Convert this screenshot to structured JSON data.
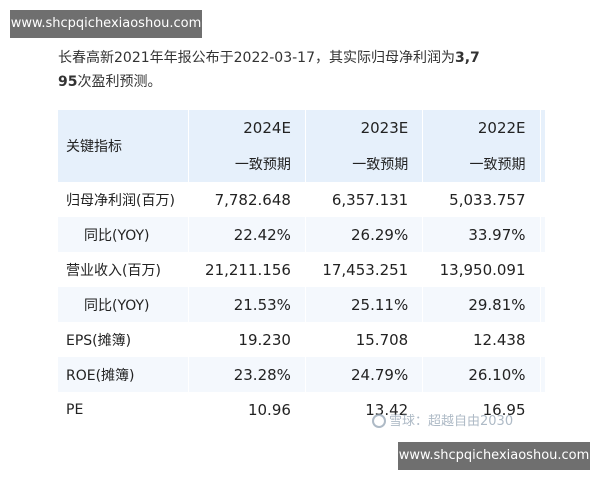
{
  "watermark_top": "www.shcpqichexiaoshou.com",
  "watermark_bottom": "www.shcpqichexiaoshou.com",
  "intro": {
    "line1_text": "长春高新2021年年报公布于2022-03-17，其实际归母净利润为",
    "line1_num": "3,7",
    "line2_num": "95",
    "line2_text": "次盈利预测。"
  },
  "table": {
    "header_label": "关键指标",
    "years": [
      "2024E",
      "2023E",
      "2022E"
    ],
    "subheader": [
      "一致预期",
      "一致预期",
      "一致预期"
    ],
    "rows": [
      {
        "label": "归母净利润(百万)",
        "indent": false,
        "values": [
          "7,782.648",
          "6,357.131",
          "5,033.757"
        ]
      },
      {
        "label": "同比(YOY)",
        "indent": true,
        "values": [
          "22.42%",
          "26.29%",
          "33.97%"
        ]
      },
      {
        "label": "营业收入(百万)",
        "indent": false,
        "values": [
          "21,211.156",
          "17,453.251",
          "13,950.091"
        ]
      },
      {
        "label": "同比(YOY)",
        "indent": true,
        "values": [
          "21.53%",
          "25.11%",
          "29.81%"
        ]
      },
      {
        "label": "EPS(摊簿)",
        "indent": false,
        "values": [
          "19.230",
          "15.708",
          "12.438"
        ]
      },
      {
        "label": "ROE(摊簿)",
        "indent": false,
        "values": [
          "23.28%",
          "24.79%",
          "26.10%"
        ]
      },
      {
        "label": "PE",
        "indent": false,
        "values": [
          "10.96",
          "13.42",
          "16.95"
        ]
      }
    ]
  },
  "xueqiu_watermark": "雪球：超越自由2030",
  "colors": {
    "header_bg": "#e6f0fb",
    "alt_row_bg": "#f4f8fd",
    "watermark_bg": "#6f6f6f"
  }
}
